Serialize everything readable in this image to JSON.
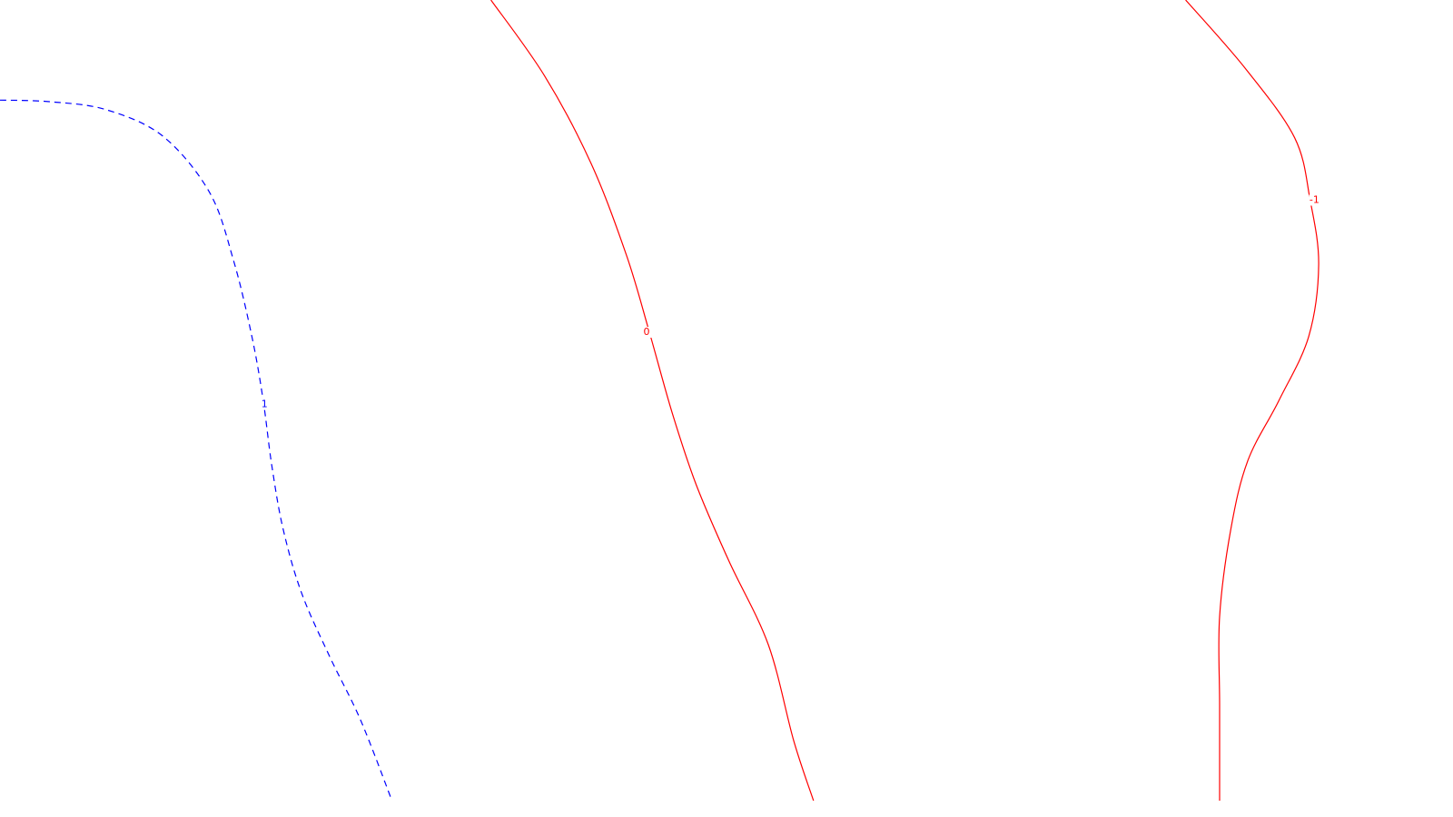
{
  "chart_data": {
    "type": "contour",
    "title": "",
    "xlabel": "",
    "ylabel": "",
    "grid": false,
    "legend": "none",
    "xlim": [
      0,
      1
    ],
    "ylim": [
      0,
      1
    ],
    "colors": {
      "background": "#ffffff",
      "positive": "#0000ff",
      "nonpositive": "#ff0000"
    },
    "contours": [
      {
        "level": 1,
        "label": "1",
        "style": "dashed",
        "color": "#0000ff",
        "points": [
          [
            0.0,
            0.125
          ],
          [
            0.035,
            0.127
          ],
          [
            0.075,
            0.137
          ],
          [
            0.115,
            0.17
          ],
          [
            0.148,
            0.24
          ],
          [
            0.165,
            0.325
          ],
          [
            0.178,
            0.42
          ],
          [
            0.186,
            0.5
          ],
          [
            0.192,
            0.58
          ],
          [
            0.2,
            0.66
          ],
          [
            0.213,
            0.74
          ],
          [
            0.233,
            0.82
          ],
          [
            0.255,
            0.9
          ],
          [
            0.277,
            1.0
          ]
        ],
        "label_at": [
          0.187,
          0.505
        ]
      },
      {
        "level": 0,
        "label": "0",
        "style": "solid",
        "color": "#ff0000",
        "points": [
          [
            0.347,
            0.0
          ],
          [
            0.385,
            0.095
          ],
          [
            0.418,
            0.205
          ],
          [
            0.443,
            0.32
          ],
          [
            0.459,
            0.415
          ],
          [
            0.475,
            0.515
          ],
          [
            0.492,
            0.605
          ],
          [
            0.515,
            0.7
          ],
          [
            0.543,
            0.805
          ],
          [
            0.561,
            0.925
          ],
          [
            0.575,
            1.0
          ]
        ],
        "label_at": [
          0.457,
          0.415
        ]
      },
      {
        "level": -1,
        "label": "-1",
        "style": "solid",
        "color": "#ff0000",
        "points": [
          [
            0.838,
            0.0
          ],
          [
            0.88,
            0.085
          ],
          [
            0.915,
            0.172
          ],
          [
            0.926,
            0.25
          ],
          [
            0.932,
            0.33
          ],
          [
            0.925,
            0.42
          ],
          [
            0.904,
            0.5
          ],
          [
            0.882,
            0.575
          ],
          [
            0.87,
            0.66
          ],
          [
            0.862,
            0.77
          ],
          [
            0.862,
            0.88
          ],
          [
            0.862,
            1.0
          ]
        ],
        "label_at": [
          0.929,
          0.25
        ]
      }
    ]
  }
}
